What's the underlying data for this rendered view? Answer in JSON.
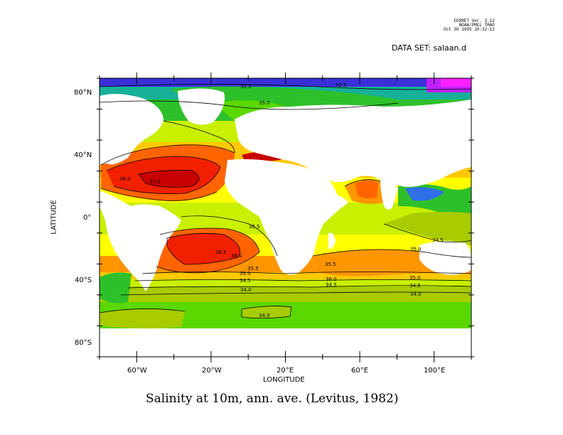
{
  "header": {
    "program": "FERRET Ver. 3.12",
    "org": "NOAA/PMEL TMAP",
    "timestamp": "Oct 30 1995 16:32:12"
  },
  "dataset_label": "DATA SET: salaan.d",
  "title": "Salinity at 10m, ann. ave. (Levitus, 1982)",
  "axes": {
    "xlabel": "LONGITUDE",
    "ylabel": "LATITUDE",
    "x_ticks": [
      "60°W",
      "20°W",
      "20°E",
      "60°E",
      "100°E"
    ],
    "y_ticks": [
      "80°N",
      "40°N",
      "0°",
      "40°S",
      "80°S"
    ]
  },
  "contour_labels": [
    "32.5",
    "32.5",
    "35.0",
    "36.0",
    "37.0",
    "35.5",
    "36.5",
    "36.0",
    "35.5",
    "35.0",
    "34.5",
    "34.0",
    "35.5",
    "36.0",
    "34.5",
    "35.0",
    "35.0",
    "34.5",
    "34.0",
    "34.0"
  ],
  "chart_data": {
    "type": "heatmap",
    "title": "Salinity at 10m, ann. ave. (Levitus, 1982)",
    "xlabel": "LONGITUDE",
    "ylabel": "LATITUDE",
    "x_range": [
      -80,
      120
    ],
    "y_range": [
      -90,
      90
    ],
    "x_ticks": [
      -60,
      -20,
      20,
      60,
      100
    ],
    "y_ticks": [
      80,
      40,
      0,
      -40,
      -80
    ],
    "contour_levels": [
      32.5,
      34.0,
      34.5,
      35.0,
      35.5,
      36.0,
      36.5,
      37.0
    ],
    "colors": {
      "ocean_deep": "#3a2fd8",
      "blue": "#2f6fe8",
      "cyan": "#3cc8c8",
      "teal": "#18b098",
      "green": "#2ec02a",
      "lime": "#5ad800",
      "olive": "#a8cc00",
      "chartreuse": "#c8f000",
      "yellow": "#ffff00",
      "gold": "#ffc800",
      "orange": "#ff9600",
      "orange_red": "#ff6400",
      "red": "#f02000",
      "dark_red": "#c80000",
      "purple": "#c020ff",
      "magenta": "#ff20ff",
      "land": "#ffffff"
    }
  }
}
